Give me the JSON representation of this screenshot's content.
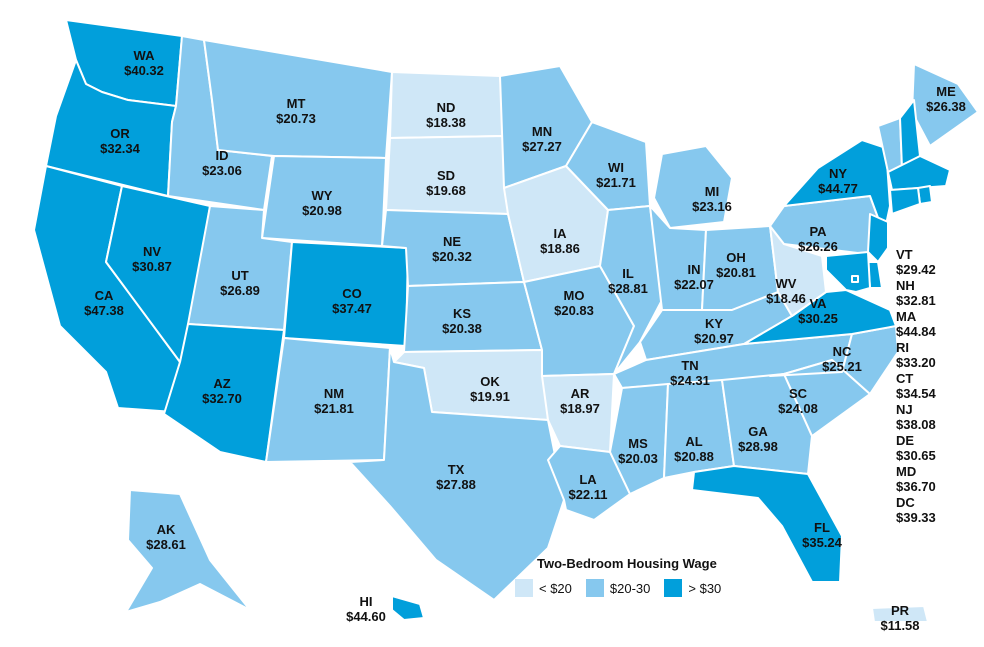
{
  "colors": {
    "low": "#cfe7f7",
    "mid": "#86c8ee",
    "high": "#019fdb"
  },
  "states": [
    {
      "abbr": "WA",
      "wage": "$40.32",
      "tier": "high"
    },
    {
      "abbr": "OR",
      "wage": "$32.34",
      "tier": "high"
    },
    {
      "abbr": "CA",
      "wage": "$47.38",
      "tier": "high"
    },
    {
      "abbr": "NV",
      "wage": "$30.87",
      "tier": "high"
    },
    {
      "abbr": "ID",
      "wage": "$23.06",
      "tier": "mid"
    },
    {
      "abbr": "MT",
      "wage": "$20.73",
      "tier": "mid"
    },
    {
      "abbr": "WY",
      "wage": "$20.98",
      "tier": "mid"
    },
    {
      "abbr": "UT",
      "wage": "$26.89",
      "tier": "mid"
    },
    {
      "abbr": "CO",
      "wage": "$37.47",
      "tier": "high"
    },
    {
      "abbr": "AZ",
      "wage": "$32.70",
      "tier": "high"
    },
    {
      "abbr": "NM",
      "wage": "$21.81",
      "tier": "mid"
    },
    {
      "abbr": "ND",
      "wage": "$18.38",
      "tier": "low"
    },
    {
      "abbr": "SD",
      "wage": "$19.68",
      "tier": "low"
    },
    {
      "abbr": "NE",
      "wage": "$20.32",
      "tier": "mid"
    },
    {
      "abbr": "KS",
      "wage": "$20.38",
      "tier": "mid"
    },
    {
      "abbr": "OK",
      "wage": "$19.91",
      "tier": "low"
    },
    {
      "abbr": "TX",
      "wage": "$27.88",
      "tier": "mid"
    },
    {
      "abbr": "MN",
      "wage": "$27.27",
      "tier": "mid"
    },
    {
      "abbr": "IA",
      "wage": "$18.86",
      "tier": "low"
    },
    {
      "abbr": "MO",
      "wage": "$20.83",
      "tier": "mid"
    },
    {
      "abbr": "AR",
      "wage": "$18.97",
      "tier": "low"
    },
    {
      "abbr": "LA",
      "wage": "$22.11",
      "tier": "mid"
    },
    {
      "abbr": "WI",
      "wage": "$21.71",
      "tier": "mid"
    },
    {
      "abbr": "IL",
      "wage": "$28.81",
      "tier": "mid"
    },
    {
      "abbr": "MI",
      "wage": "$23.16",
      "tier": "mid"
    },
    {
      "abbr": "IN",
      "wage": "$22.07",
      "tier": "mid"
    },
    {
      "abbr": "OH",
      "wage": "$20.81",
      "tier": "mid"
    },
    {
      "abbr": "KY",
      "wage": "$20.97",
      "tier": "mid"
    },
    {
      "abbr": "TN",
      "wage": "$24.31",
      "tier": "mid"
    },
    {
      "abbr": "MS",
      "wage": "$20.03",
      "tier": "mid"
    },
    {
      "abbr": "AL",
      "wage": "$20.88",
      "tier": "mid"
    },
    {
      "abbr": "GA",
      "wage": "$28.98",
      "tier": "mid"
    },
    {
      "abbr": "FL",
      "wage": "$35.24",
      "tier": "high"
    },
    {
      "abbr": "SC",
      "wage": "$24.08",
      "tier": "mid"
    },
    {
      "abbr": "NC",
      "wage": "$25.21",
      "tier": "mid"
    },
    {
      "abbr": "VA",
      "wage": "$30.25",
      "tier": "high"
    },
    {
      "abbr": "WV",
      "wage": "$18.46",
      "tier": "low"
    },
    {
      "abbr": "PA",
      "wage": "$26.26",
      "tier": "mid"
    },
    {
      "abbr": "NY",
      "wage": "$44.77",
      "tier": "high"
    },
    {
      "abbr": "ME",
      "wage": "$26.38",
      "tier": "mid"
    },
    {
      "abbr": "AK",
      "wage": "$28.61",
      "tier": "mid"
    },
    {
      "abbr": "HI",
      "wage": "$44.60",
      "tier": "high"
    },
    {
      "abbr": "PR",
      "wage": "$11.58",
      "tier": "low"
    },
    {
      "abbr": "VT",
      "wage": "$29.42",
      "tier": "mid"
    },
    {
      "abbr": "NH",
      "wage": "$32.81",
      "tier": "high"
    },
    {
      "abbr": "MA",
      "wage": "$44.84",
      "tier": "high"
    },
    {
      "abbr": "RI",
      "wage": "$33.20",
      "tier": "high"
    },
    {
      "abbr": "CT",
      "wage": "$34.54",
      "tier": "high"
    },
    {
      "abbr": "NJ",
      "wage": "$38.08",
      "tier": "high"
    },
    {
      "abbr": "DE",
      "wage": "$30.65",
      "tier": "high"
    },
    {
      "abbr": "MD",
      "wage": "$36.70",
      "tier": "high"
    },
    {
      "abbr": "DC",
      "wage": "$39.33",
      "tier": "high"
    }
  ],
  "legend": {
    "title": "Two-Bedroom Housing Wage",
    "items": [
      {
        "label": "< $20",
        "tier": "low"
      },
      {
        "label": "$20-30",
        "tier": "mid"
      },
      {
        "label": "> $30",
        "tier": "high"
      }
    ]
  }
}
